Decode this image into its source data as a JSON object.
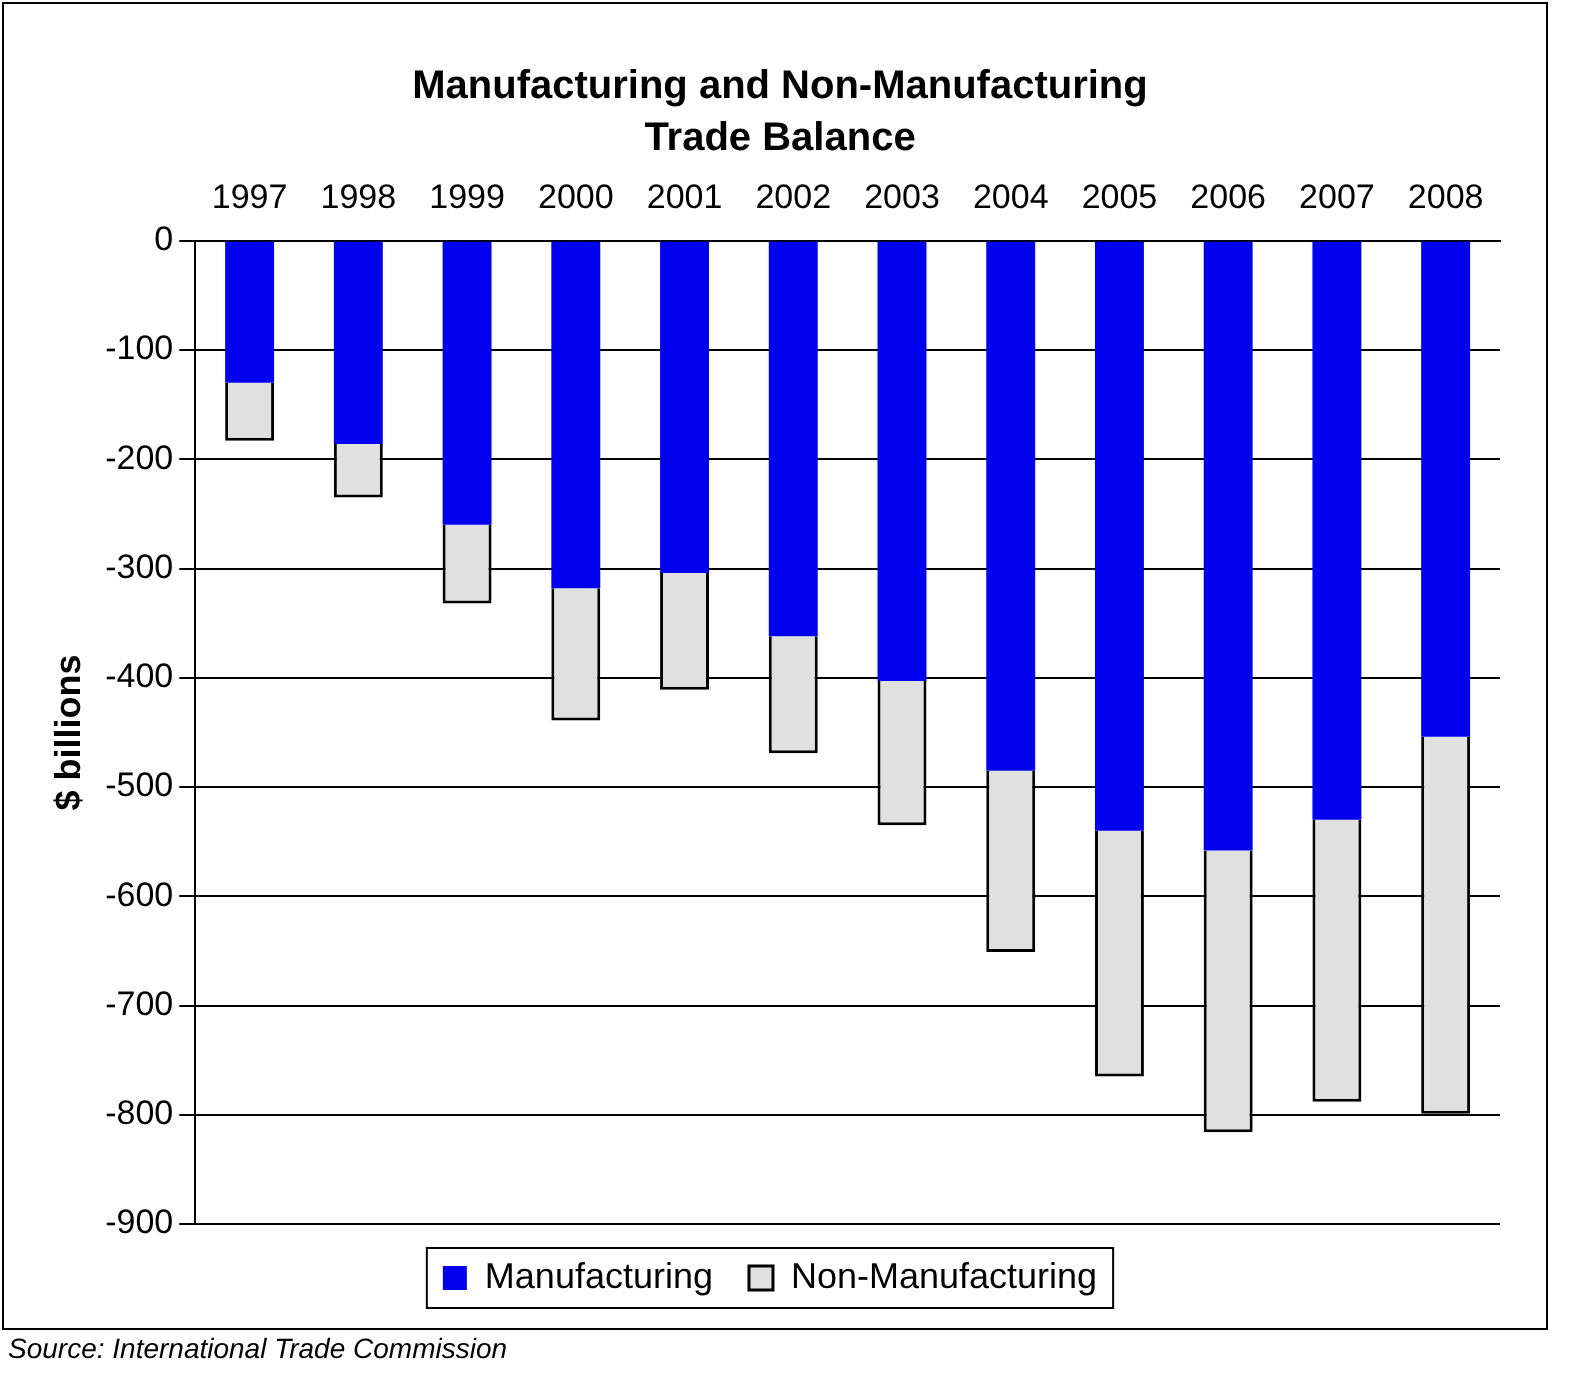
{
  "chart_data": {
    "type": "bar",
    "title": "Manufacturing and Non-Manufacturing Trade Balance",
    "ylabel": "$ billions",
    "categories": [
      "1997",
      "1998",
      "1999",
      "2000",
      "2001",
      "2002",
      "2003",
      "2004",
      "2005",
      "2006",
      "2007",
      "2008"
    ],
    "stacked": true,
    "series": [
      {
        "name": "Manufacturing",
        "color": "#0000ee",
        "values": [
          -130,
          -186,
          -260,
          -318,
          -304,
          -362,
          -403,
          -485,
          -540,
          -558,
          -530,
          -454
        ]
      },
      {
        "name": "Non-Manufacturing",
        "color": "#e0e0e0",
        "values": [
          -53,
          -49,
          -72,
          -121,
          -107,
          -107,
          -132,
          -166,
          -225,
          -258,
          -258,
          -345
        ]
      }
    ],
    "ylim": [
      -900,
      0
    ],
    "yticks": [
      0,
      -100,
      -200,
      -300,
      -400,
      -500,
      -600,
      -700,
      -800,
      -900
    ],
    "grid": "y",
    "legend": "bottom",
    "annotations": [
      "Source: International Trade Commission"
    ]
  }
}
